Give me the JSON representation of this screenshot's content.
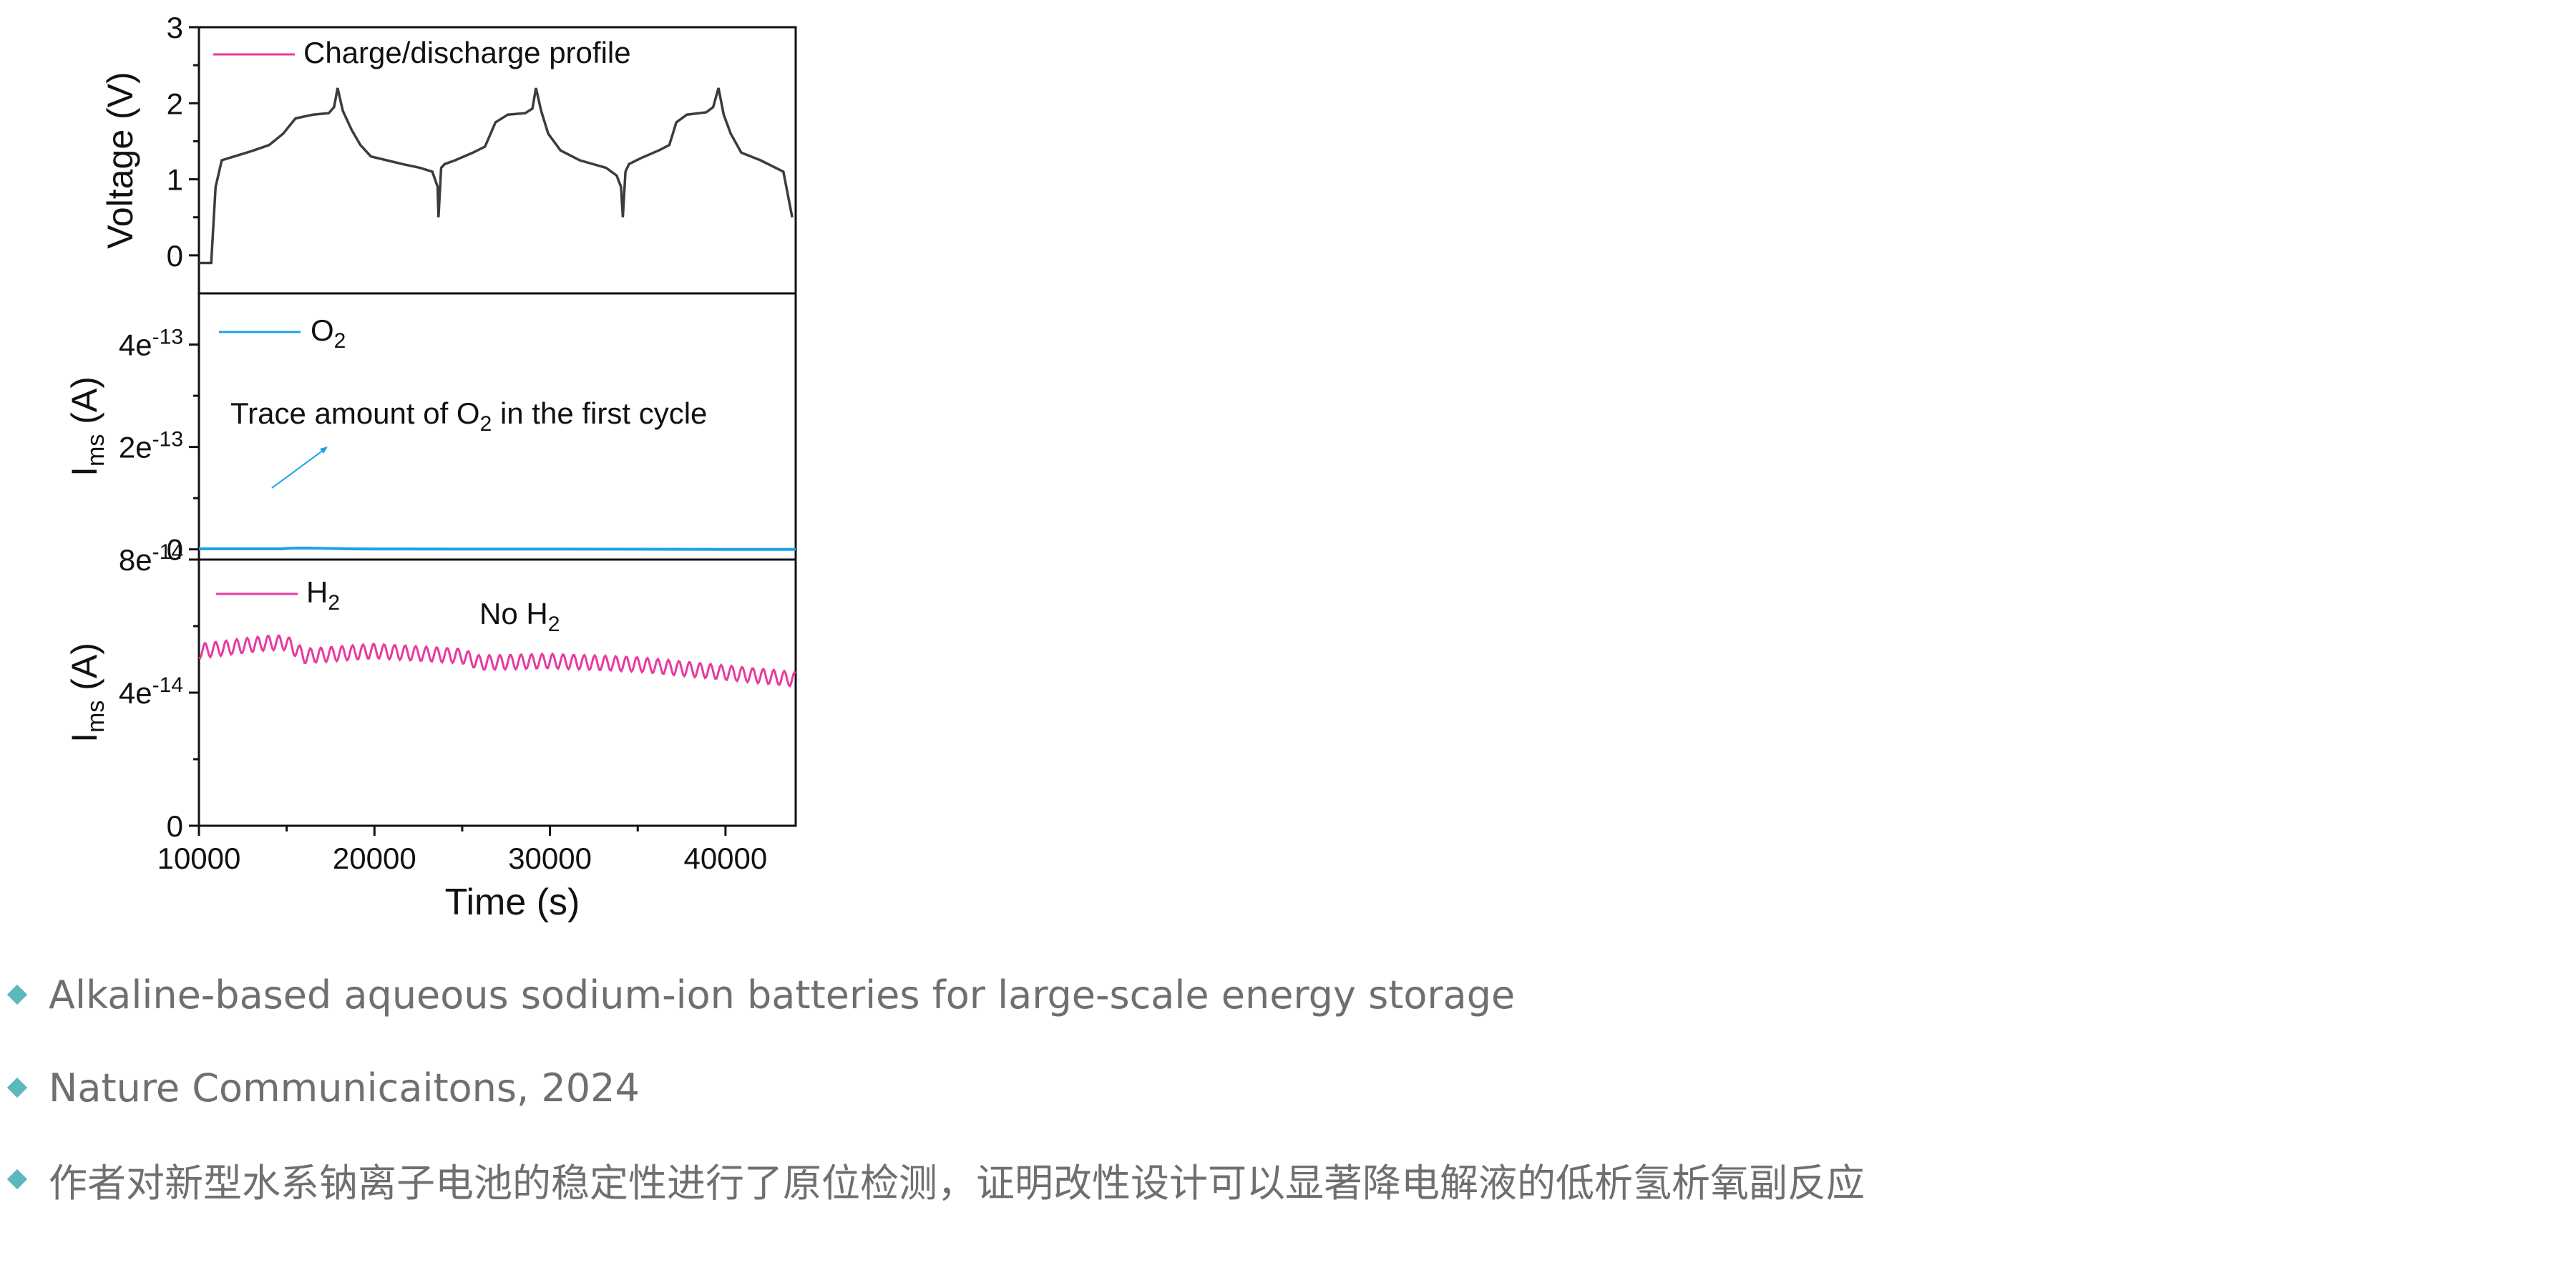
{
  "chart_data": {
    "type": "line",
    "x_axis": {
      "label": "Time (s)",
      "lim": [
        10000,
        44000
      ],
      "ticks": [
        10000,
        20000,
        30000,
        40000
      ],
      "tick_labels": [
        "10000",
        "20000",
        "30000",
        "40000"
      ]
    },
    "colors": {
      "voltage": "#3c3c3c",
      "o2": "#1ca3e6",
      "h2": "#e83aa0",
      "axis": "#111111"
    },
    "panels": [
      {
        "id": "voltage",
        "ylabel": "Voltage (V)",
        "ylim": [
          -0.5,
          3
        ],
        "yticks": [
          0,
          1,
          2,
          3
        ],
        "ytick_labels": [
          "0",
          "1",
          "2",
          "3"
        ],
        "legend": "Charge/discharge profile",
        "legend_color": "#e83aa0",
        "series": {
          "name": "Charge/discharge profile",
          "x": [
            10000,
            10700,
            10800,
            10950,
            11300,
            12000,
            13000,
            14000,
            14800,
            15500,
            16500,
            17400,
            17700,
            17900,
            18200,
            18700,
            19200,
            19800,
            20700,
            21600,
            22600,
            23300,
            23600,
            23650,
            23800,
            24000,
            24600,
            25600,
            26300,
            26900,
            27600,
            28600,
            29000,
            29200,
            29500,
            29900,
            30600,
            31700,
            33200,
            33800,
            34050,
            34150,
            34300,
            34500,
            35200,
            36200,
            36800,
            37200,
            37800,
            38900,
            39300,
            39600,
            39900,
            40300,
            40900,
            42000,
            43300,
            43800
          ],
          "y": [
            -0.1,
            -0.1,
            0.3,
            0.9,
            1.25,
            1.3,
            1.37,
            1.45,
            1.6,
            1.8,
            1.85,
            1.87,
            1.95,
            2.2,
            1.9,
            1.65,
            1.45,
            1.3,
            1.25,
            1.2,
            1.15,
            1.1,
            0.9,
            0.5,
            1.15,
            1.2,
            1.25,
            1.35,
            1.43,
            1.75,
            1.85,
            1.87,
            1.93,
            2.2,
            1.9,
            1.6,
            1.38,
            1.25,
            1.15,
            1.05,
            0.9,
            0.5,
            1.1,
            1.2,
            1.28,
            1.38,
            1.45,
            1.75,
            1.85,
            1.88,
            1.95,
            2.2,
            1.85,
            1.6,
            1.35,
            1.25,
            1.1,
            0.5
          ]
        }
      },
      {
        "id": "o2",
        "ylabel_main": "I",
        "ylabel_sub": "ms",
        "ylabel_unit": " (A)",
        "ylim": [
          -2e-14,
          5e-13
        ],
        "yticks": [
          0,
          2e-13,
          4e-13
        ],
        "ytick_labels": [
          {
            "base": "0",
            "exp": ""
          },
          {
            "base": "2e",
            "exp": "-13"
          },
          {
            "base": "4e",
            "exp": "-13"
          }
        ],
        "legend_main": "O",
        "legend_sub": "2",
        "legend_color": "#1ca3e6",
        "annotation": {
          "pre": "Trace amount of O",
          "sub": "2",
          "post": " in the first cycle"
        },
        "series": {
          "name": "O2",
          "x": [
            10000,
            14700,
            15200,
            16000,
            17000,
            18000,
            19000,
            20000,
            22000,
            25000,
            30000,
            35000,
            40000,
            44000
          ],
          "y": [
            1e-15,
            1e-15,
            2.2e-15,
            2.5e-15,
            2e-15,
            1.2e-15,
            8e-16,
            7e-16,
            5e-16,
            4e-16,
            4e-16,
            2e-16,
            0.0,
            -1e-16
          ]
        }
      },
      {
        "id": "h2",
        "ylabel_main": "I",
        "ylabel_sub": "ms",
        "ylabel_unit": " (A)",
        "ylim": [
          0,
          8e-14
        ],
        "yticks": [
          0,
          4e-14,
          8e-14
        ],
        "ytick_labels": [
          {
            "base": "0",
            "exp": ""
          },
          {
            "base": "4e",
            "exp": "-14"
          },
          {
            "base": "8e",
            "exp": "-14"
          }
        ],
        "legend_main": "H",
        "legend_sub": "2",
        "legend_color": "#e83aa0",
        "annotation": {
          "pre": "No H",
          "sub": "2",
          "post": ""
        },
        "series": {
          "name": "H2",
          "x": [
            10000,
            14000,
            15000,
            16000,
            20000,
            25000,
            26000,
            30000,
            35000,
            40000,
            44000
          ],
          "y": [
            5.25e-14,
            5.5e-14,
            5.5e-14,
            5.1e-14,
            5.25e-14,
            5.1e-14,
            4.9e-14,
            4.95e-14,
            4.85e-14,
            4.6e-14,
            4.4e-14
          ],
          "noise_amplitude": 2.2e-15,
          "noise_period": 600
        }
      }
    ]
  },
  "bullets": [
    "Alkaline-based aqueous sodium-ion batteries for large-scale energy storage",
    "Nature Communicaitons, 2024",
    "作者对新型水系钠离子电池的稳定性进行了原位检测，证明改性设计可以显著降电解液的低析氢析氧副反应"
  ],
  "accent_color": "#5ab8be"
}
